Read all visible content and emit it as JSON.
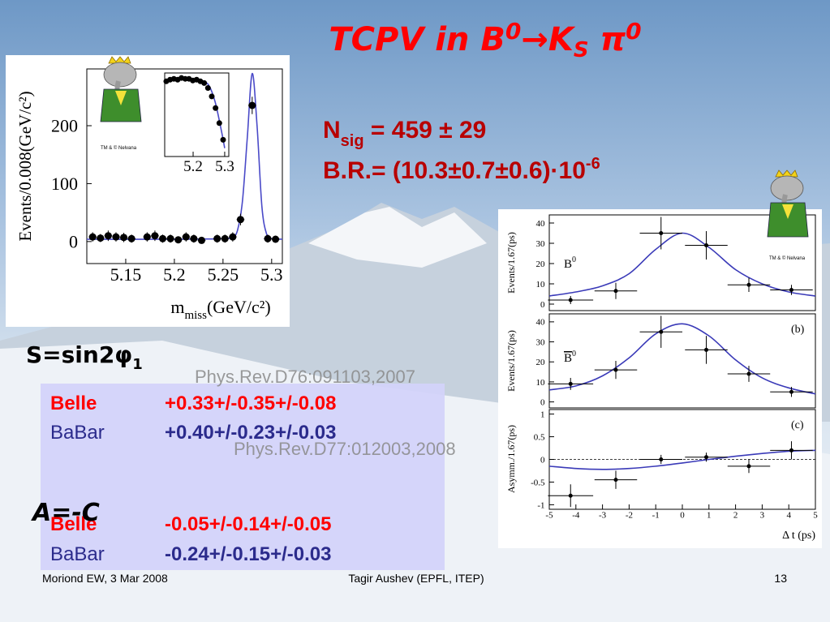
{
  "title": {
    "main": "TCPV  in B",
    "sup1": "0",
    "arrow_k": "→K",
    "sub": "S",
    "pi": " π",
    "sup2": "0"
  },
  "stats": {
    "n": "N",
    "n_sub": "sig",
    "n_value": " = 459 ± 29",
    "br": "B.R.= (10.3±0.7±0.6)·10",
    "br_exp": "-6"
  },
  "s_label": {
    "text": "S=sin2φ",
    "sub": "1"
  },
  "a_label": "A=-C",
  "refs": [
    "Phys.Rev.D76:091103,2007",
    "Phys.Rev.D77:012003,2008"
  ],
  "table": {
    "rows": [
      [
        "Belle",
        "+0.33+/-0.35+/-0.08"
      ],
      [
        "BaBar",
        "+0.40+/-0.23+/-0.03"
      ],
      [
        "Belle",
        "-0.05+/-0.14+/-0.05"
      ],
      [
        "BaBar",
        "-0.24+/-0.15+/-0.03"
      ]
    ]
  },
  "logo_text": "TM & © Nelvana",
  "footer": {
    "left": "Moriond EW, 3 Mar 2008",
    "center": "Tagir Aushev (EPFL, ITEP)",
    "page": "13"
  },
  "chart_data": [
    {
      "type": "scatter",
      "ylabel": "Events/0.008(GeV/c²)",
      "xlabel": "m",
      "xlabel_sub": "miss",
      "xlabel_unit": "(GeV/c²)",
      "xlim": [
        5.11,
        5.311
      ],
      "ylim": [
        -38,
        298
      ],
      "xticks": [
        5.15,
        5.2,
        5.25,
        5.3
      ],
      "yticks": [
        0,
        100,
        200
      ],
      "point_color": "#000000",
      "fit_color": "#4a4ac8",
      "points": {
        "x": [
          5.116,
          5.124,
          5.132,
          5.14,
          5.148,
          5.156,
          5.172,
          5.18,
          5.188,
          5.196,
          5.204,
          5.212,
          5.22,
          5.228,
          5.244,
          5.252,
          5.26,
          5.268,
          5.28,
          5.296,
          5.304
        ],
        "values": [
          8,
          6,
          10,
          8,
          7,
          5,
          8,
          10,
          5,
          5,
          3,
          8,
          5,
          2,
          5,
          5,
          8,
          38,
          235,
          5,
          4
        ],
        "xerr": [
          0.004,
          0.004,
          0.004,
          0.004,
          0.004,
          0.004,
          0.004,
          0.004,
          0.004,
          0.004,
          0.004,
          0.004,
          0.004,
          0.004,
          0.004,
          0.004,
          0.004,
          0.004,
          0.004,
          0.004,
          0.004
        ],
        "yerr": [
          8,
          7,
          9,
          8,
          8,
          7,
          8,
          9,
          7,
          7,
          6,
          8,
          7,
          5,
          7,
          7,
          8,
          10,
          15,
          7,
          6
        ]
      },
      "fit": {
        "x": [
          5.11,
          5.2,
          5.25,
          5.26,
          5.265,
          5.27,
          5.275,
          5.28,
          5.285,
          5.29,
          5.295,
          5.3,
          5.311
        ],
        "values": [
          4,
          4,
          5,
          8,
          20,
          70,
          180,
          290,
          200,
          60,
          12,
          5,
          4
        ]
      }
    },
    {
      "type": "scatter",
      "xlim": [
        5.11,
        5.313
      ],
      "ylim": [
        0,
        1
      ],
      "xticks": [
        5.2,
        5.3
      ],
      "point_color": "#000000",
      "fit_color": "#4a4ac8",
      "points": {
        "x": [
          5.115,
          5.127,
          5.139,
          5.151,
          5.163,
          5.175,
          5.187,
          5.199,
          5.211,
          5.223,
          5.235,
          5.247,
          5.259,
          5.271,
          5.283,
          5.295
        ],
        "values": [
          0.9,
          0.92,
          0.93,
          0.92,
          0.94,
          0.93,
          0.93,
          0.91,
          0.92,
          0.9,
          0.88,
          0.82,
          0.72,
          0.58,
          0.4,
          0.2
        ]
      },
      "fit": {
        "x": [
          5.11,
          5.15,
          5.2,
          5.23,
          5.25,
          5.27,
          5.29,
          5.3
        ],
        "values": [
          0.9,
          0.92,
          0.92,
          0.9,
          0.85,
          0.65,
          0.3,
          0.1
        ]
      }
    },
    {
      "type": "scatter",
      "ylabel": "Events/1.67(ps)",
      "tag": "B",
      "tag_sup": "0",
      "xlim": [
        -5,
        5
      ],
      "ylim": [
        -3.2,
        44
      ],
      "yticks": [
        0,
        10,
        20,
        30,
        40
      ],
      "point_color": "#000000",
      "fit_color": "#3a3ab8",
      "points": {
        "x": [
          -4.2,
          -2.5,
          -0.8,
          0.9,
          2.5,
          4.1
        ],
        "values": [
          2,
          6.5,
          35,
          29,
          9.5,
          7
        ],
        "xerr": [
          0.85,
          0.8,
          0.8,
          0.8,
          0.8,
          0.8
        ],
        "yerr": [
          2,
          4,
          8,
          7,
          3.5,
          2.5
        ]
      },
      "fit": {
        "x": [
          -5,
          -4,
          -3,
          -2,
          -1,
          0,
          1,
          2,
          3,
          4,
          5
        ],
        "values": [
          4,
          6,
          9,
          15,
          27,
          35,
          28,
          17,
          10,
          6,
          4
        ]
      }
    },
    {
      "type": "scatter",
      "ylabel": "Events/1.67(ps)",
      "tag": "B",
      "tag_sup": "0",
      "corner_tag": "(b)",
      "xlim": [
        -5,
        5
      ],
      "ylim": [
        -3,
        44
      ],
      "yticks": [
        0,
        10,
        20,
        30,
        40
      ],
      "point_color": "#000000",
      "fit_color": "#3a3ab8",
      "points": {
        "x": [
          -4.2,
          -2.5,
          -0.8,
          0.9,
          2.5,
          4.1
        ],
        "values": [
          9,
          16,
          35,
          26,
          14,
          5
        ],
        "xerr": [
          0.85,
          0.8,
          0.8,
          0.8,
          0.8,
          0.8
        ],
        "yerr": [
          3,
          4.5,
          8,
          7,
          4,
          2.5
        ]
      },
      "fit": {
        "x": [
          -5,
          -4,
          -3,
          -2,
          -1,
          0,
          1,
          2,
          3,
          4,
          5
        ],
        "values": [
          6,
          8,
          13,
          22,
          34,
          39,
          33,
          21,
          12,
          7,
          4
        ]
      }
    },
    {
      "type": "scatter",
      "ylabel": "Asymm./1.67(ps)",
      "corner_tag": "(c)",
      "xlabel": "Δ t (ps)",
      "zero_line": true,
      "xlim": [
        -5,
        5
      ],
      "ylim": [
        -1.1,
        1.1
      ],
      "xticks": [
        -5,
        -4,
        -3,
        -2,
        -1,
        0,
        1,
        2,
        3,
        4,
        5
      ],
      "yticks": [
        -1,
        -0.5,
        0,
        0.5,
        1
      ],
      "point_color": "#000000",
      "fit_color": "#3a3ab8",
      "points": {
        "x": [
          -4.2,
          -2.5,
          -0.8,
          0.9,
          2.5,
          4.1
        ],
        "values": [
          -0.8,
          -0.45,
          0,
          0.05,
          -0.15,
          0.2
        ],
        "xerr": [
          0.85,
          0.8,
          0.8,
          0.8,
          0.8,
          0.8
        ],
        "yerr": [
          0.25,
          0.2,
          0.1,
          0.1,
          0.15,
          0.2
        ]
      },
      "fit": {
        "x": [
          -5,
          -4,
          -3,
          -2,
          -1,
          0,
          1,
          2,
          3,
          4,
          5
        ],
        "values": [
          -0.15,
          -0.2,
          -0.22,
          -0.2,
          -0.15,
          -0.08,
          0,
          0.07,
          0.13,
          0.18,
          0.2
        ]
      }
    }
  ]
}
